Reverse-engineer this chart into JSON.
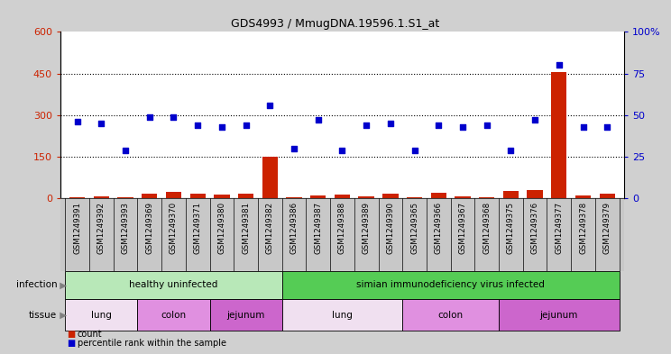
{
  "title": "GDS4993 / MmugDNA.19596.1.S1_at",
  "samples": [
    "GSM1249391",
    "GSM1249392",
    "GSM1249393",
    "GSM1249369",
    "GSM1249370",
    "GSM1249371",
    "GSM1249380",
    "GSM1249381",
    "GSM1249382",
    "GSM1249386",
    "GSM1249387",
    "GSM1249388",
    "GSM1249389",
    "GSM1249390",
    "GSM1249365",
    "GSM1249366",
    "GSM1249367",
    "GSM1249368",
    "GSM1249375",
    "GSM1249376",
    "GSM1249377",
    "GSM1249378",
    "GSM1249379"
  ],
  "counts": [
    5,
    8,
    4,
    18,
    22,
    15,
    12,
    15,
    150,
    5,
    10,
    12,
    8,
    15,
    5,
    20,
    8,
    5,
    25,
    30,
    455,
    10,
    15
  ],
  "percentiles": [
    46,
    45,
    29,
    49,
    49,
    44,
    43,
    44,
    56,
    30,
    47,
    29,
    44,
    45,
    29,
    44,
    43,
    44,
    29,
    47,
    80,
    43,
    43
  ],
  "infect_ranges": [
    {
      "start": 0,
      "end": 8,
      "label": "healthy uninfected",
      "color": "#b8e8b8"
    },
    {
      "start": 9,
      "end": 22,
      "label": "simian immunodeficiency virus infected",
      "color": "#55cc55"
    }
  ],
  "tissue_ranges": [
    {
      "start": 0,
      "end": 2,
      "label": "lung",
      "color": "#f0e0f0"
    },
    {
      "start": 3,
      "end": 5,
      "label": "colon",
      "color": "#e090e0"
    },
    {
      "start": 6,
      "end": 8,
      "label": "jejunum",
      "color": "#cc66cc"
    },
    {
      "start": 9,
      "end": 13,
      "label": "lung",
      "color": "#f0e0f0"
    },
    {
      "start": 14,
      "end": 17,
      "label": "colon",
      "color": "#e090e0"
    },
    {
      "start": 18,
      "end": 22,
      "label": "jejunum",
      "color": "#cc66cc"
    }
  ],
  "bar_color": "#cc2200",
  "dot_color": "#0000cc",
  "ylim_left": [
    0,
    600
  ],
  "ylim_right": [
    0,
    100
  ],
  "yticks_left": [
    0,
    150,
    300,
    450,
    600
  ],
  "yticks_right": [
    0,
    25,
    50,
    75,
    100
  ],
  "grid_lines": [
    150,
    300,
    450
  ],
  "fig_bg": "#d0d0d0",
  "plot_bg": "#ffffff",
  "label_bg": "#c8c8c8"
}
